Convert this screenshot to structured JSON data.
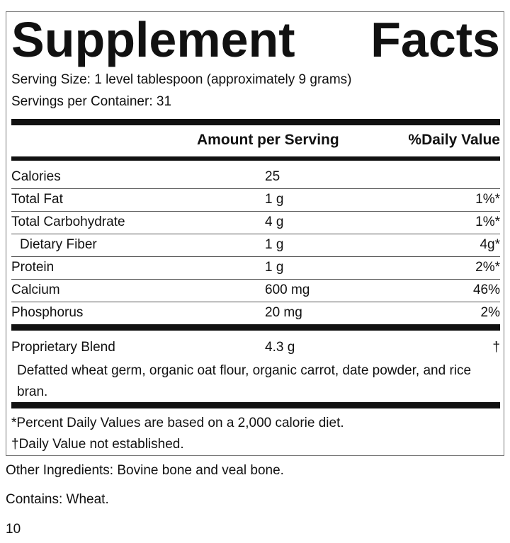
{
  "title": "Supplement Facts",
  "serving_size": "Serving Size: 1 level tablespoon (approximately 9 grams)",
  "servings_per_container": "Servings per Container: 31",
  "header": {
    "amount": "Amount per Serving",
    "daily_value": "%Daily Value"
  },
  "rows": [
    {
      "name": "Calories",
      "amount": "25"
    },
    {
      "name": "Total Fat",
      "amount": "1 g",
      "daily_value": "1%*"
    },
    {
      "name": "Total Carbohydrate",
      "amount": "4 g",
      "daily_value": "1%*"
    },
    {
      "name": "Dietary Fiber",
      "amount": "1 g",
      "daily_value": "4g*",
      "indent": true
    },
    {
      "name": "Protein",
      "amount": "1 g",
      "daily_value": "2%*"
    },
    {
      "name": "Calcium",
      "amount": "600 mg",
      "daily_value": "46%"
    },
    {
      "name": "Phosphorus",
      "amount": "20 mg",
      "daily_value": "2%"
    }
  ],
  "blend": {
    "name": "Proprietary Blend",
    "amount": "4.3 g",
    "daily_value": "†",
    "ingredients": "Defatted wheat germ, organic oat flour, organic carrot, date powder, and rice bran."
  },
  "footnotes": [
    "*Percent Daily Values are based on a 2,000 calorie diet.",
    "†Daily Value not established."
  ],
  "other_ingredients": "Other Ingredients: Bovine bone and veal bone.",
  "contains": "Contains: Wheat.",
  "page_number": "10"
}
